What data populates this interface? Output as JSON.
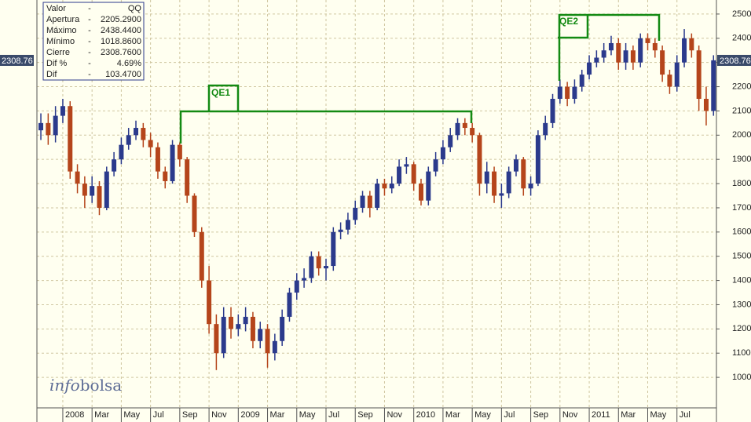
{
  "chart_data": {
    "type": "candlestick",
    "x": [
      -1.5,
      -1,
      -0.5,
      0,
      0.5,
      1,
      1.5,
      2,
      2.5,
      3,
      3.5,
      4,
      4.5,
      5,
      5.5,
      6,
      6.5,
      7,
      7.5,
      8,
      8.5,
      9,
      9.5,
      10,
      10.5,
      11,
      11.5,
      12,
      12.5,
      13,
      13.5,
      14,
      14.5,
      15,
      15.5,
      16,
      16.5,
      17,
      17.5,
      18,
      18.5,
      19,
      19.5,
      20,
      20.5,
      21,
      21.5,
      22,
      22.5,
      23,
      23.5,
      24,
      24.5,
      25,
      25.5,
      26,
      26.5,
      27,
      27.5,
      28,
      28.5,
      29,
      29.5,
      30,
      30.5,
      31,
      31.5,
      32,
      32.5,
      33,
      33.5,
      34,
      34.5,
      35,
      35.5,
      36,
      36.5,
      37,
      37.5,
      38,
      38.5,
      39,
      39.5,
      40,
      40.5,
      41,
      41.5,
      42,
      42.5,
      43,
      43.5,
      44,
      44.5
    ],
    "open": [
      2020,
      2050,
      2000,
      2080,
      2120,
      1850,
      1800,
      1750,
      1790,
      1700,
      1850,
      1900,
      1960,
      2000,
      2030,
      1980,
      1950,
      1850,
      1810,
      1960,
      1900,
      1750,
      1600,
      1400,
      1220,
      1100,
      1250,
      1200,
      1220,
      1250,
      1150,
      1200,
      1100,
      1150,
      1250,
      1350,
      1400,
      1410,
      1500,
      1450,
      1460,
      1600,
      1610,
      1650,
      1700,
      1750,
      1700,
      1800,
      1780,
      1800,
      1870,
      1880,
      1800,
      1730,
      1850,
      1900,
      1950,
      2000,
      2050,
      2030,
      2000,
      1800,
      1850,
      1750,
      1760,
      1850,
      1900,
      1780,
      1800,
      2000,
      2050,
      2150,
      2200,
      2150,
      2200,
      2250,
      2300,
      2320,
      2350,
      2380,
      2300,
      2350,
      2300,
      2400,
      2380,
      2350,
      2250,
      2200,
      2300,
      2400,
      2350,
      2150,
      2100
    ],
    "high": [
      2090,
      2090,
      2120,
      2150,
      2140,
      1880,
      1830,
      1830,
      1810,
      1870,
      1930,
      1990,
      2030,
      2060,
      2050,
      2010,
      1970,
      1870,
      1980,
      1970,
      1910,
      1760,
      1620,
      1460,
      1260,
      1290,
      1290,
      1260,
      1290,
      1270,
      1230,
      1220,
      1180,
      1280,
      1370,
      1430,
      1450,
      1520,
      1520,
      1490,
      1620,
      1640,
      1680,
      1730,
      1770,
      1770,
      1820,
      1820,
      1830,
      1900,
      1910,
      1890,
      1820,
      1870,
      1930,
      1980,
      2030,
      2070,
      2070,
      2050,
      2010,
      1890,
      1870,
      1800,
      1870,
      1920,
      1910,
      1830,
      2020,
      2080,
      2170,
      2230,
      2220,
      2230,
      2270,
      2330,
      2350,
      2380,
      2410,
      2400,
      2380,
      2370,
      2420,
      2420,
      2400,
      2370,
      2270,
      2330,
      2438,
      2420,
      2370,
      2200,
      2330
    ],
    "low": [
      1980,
      1960,
      1970,
      2050,
      1820,
      1760,
      1700,
      1720,
      1670,
      1690,
      1830,
      1880,
      1940,
      1980,
      1950,
      1910,
      1820,
      1780,
      1800,
      1870,
      1720,
      1580,
      1370,
      1180,
      1030,
      1080,
      1160,
      1170,
      1190,
      1120,
      1120,
      1040,
      1070,
      1130,
      1230,
      1320,
      1370,
      1390,
      1420,
      1400,
      1440,
      1570,
      1590,
      1630,
      1680,
      1660,
      1690,
      1750,
      1760,
      1790,
      1840,
      1770,
      1710,
      1710,
      1830,
      1880,
      1930,
      1980,
      2000,
      1970,
      1750,
      1760,
      1720,
      1700,
      1740,
      1830,
      1750,
      1750,
      1790,
      1980,
      2030,
      2130,
      2120,
      2130,
      2180,
      2230,
      2280,
      2300,
      2330,
      2270,
      2270,
      2270,
      2280,
      2350,
      2320,
      2220,
      2170,
      2180,
      2280,
      2320,
      2100,
      2040,
      2080
    ],
    "close": [
      2050,
      2000,
      2080,
      2120,
      1850,
      1800,
      1750,
      1790,
      1700,
      1850,
      1900,
      1960,
      2000,
      2030,
      1980,
      1950,
      1850,
      1810,
      1960,
      1900,
      1750,
      1600,
      1400,
      1220,
      1100,
      1250,
      1200,
      1220,
      1250,
      1150,
      1200,
      1100,
      1150,
      1250,
      1350,
      1400,
      1410,
      1500,
      1450,
      1460,
      1600,
      1610,
      1650,
      1700,
      1750,
      1700,
      1800,
      1780,
      1800,
      1870,
      1880,
      1800,
      1730,
      1850,
      1900,
      1950,
      2000,
      2050,
      2030,
      2000,
      1800,
      1850,
      1750,
      1760,
      1850,
      1900,
      1780,
      1800,
      2000,
      2050,
      2150,
      2200,
      2150,
      2200,
      2250,
      2300,
      2320,
      2350,
      2380,
      2300,
      2350,
      2300,
      2400,
      2380,
      2350,
      2250,
      2200,
      2300,
      2400,
      2350,
      2150,
      2100,
      2309
    ],
    "up_color": "#2b3a8c",
    "down_color": "#b5451b",
    "xlim": [
      -1.77,
      44.7
    ],
    "xticks": [
      {
        "value": 0,
        "label": "2008"
      },
      {
        "value": 2,
        "label": "Mar"
      },
      {
        "value": 4,
        "label": "May"
      },
      {
        "value": 6,
        "label": "Jul"
      },
      {
        "value": 8,
        "label": "Sep"
      },
      {
        "value": 10,
        "label": "Nov"
      },
      {
        "value": 12,
        "label": "2009"
      },
      {
        "value": 14,
        "label": "Mar"
      },
      {
        "value": 16,
        "label": "May"
      },
      {
        "value": 18,
        "label": "Jul"
      },
      {
        "value": 20,
        "label": "Sep"
      },
      {
        "value": 22,
        "label": "Nov"
      },
      {
        "value": 24,
        "label": "2010"
      },
      {
        "value": 26,
        "label": "Mar"
      },
      {
        "value": 28,
        "label": "May"
      },
      {
        "value": 30,
        "label": "Jul"
      },
      {
        "value": 32,
        "label": "Sep"
      },
      {
        "value": 34,
        "label": "Nov"
      },
      {
        "value": 36,
        "label": "2011"
      },
      {
        "value": 38,
        "label": "Mar"
      },
      {
        "value": 40,
        "label": "May"
      },
      {
        "value": 42,
        "label": "Jul"
      }
    ],
    "ylim": [
      874,
      2558
    ],
    "yticks": [
      1000,
      1100,
      1200,
      1300,
      1400,
      1500,
      1600,
      1700,
      1800,
      1900,
      2000,
      2100,
      2200,
      2300,
      2400,
      2500
    ],
    "grid": true,
    "last_value": 2308.76,
    "annotations": [
      {
        "text": "QE1"
      },
      {
        "text": "QE2"
      }
    ],
    "info_box": [
      [
        "Valor",
        "-",
        "QQ"
      ],
      [
        "Apertura",
        "-",
        "2205.2900"
      ],
      [
        "Máximo",
        "-",
        "2438.4400"
      ],
      [
        "Mínimo",
        "-",
        "1018.8600"
      ],
      [
        "Cierre",
        "-",
        "2308.7600"
      ],
      [
        "Dif %",
        "-",
        "4.69%"
      ],
      [
        "Dif",
        "-",
        "103.4700"
      ]
    ],
    "watermark": [
      "info",
      "bolsa"
    ]
  }
}
